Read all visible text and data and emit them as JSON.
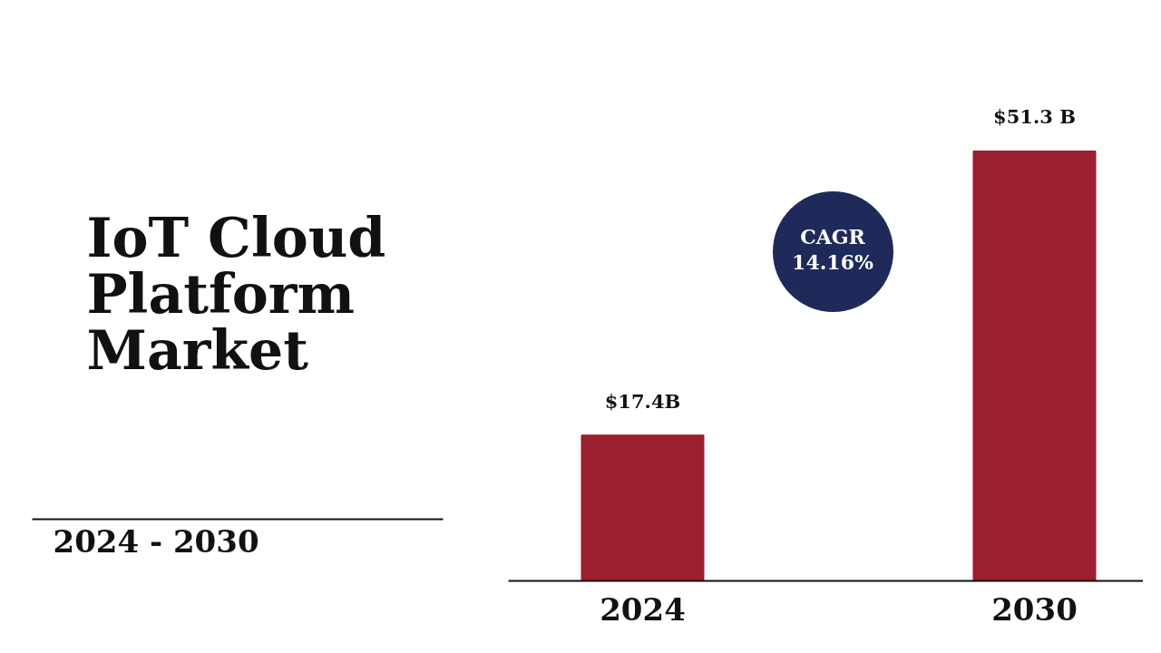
{
  "chart_data": {
    "type": "bar",
    "title": "IoT Cloud Platform Market",
    "categories": [
      "2024",
      "2030"
    ],
    "values": [
      17.4,
      51.3
    ],
    "color": "#9b1f2f",
    "value_labels": [
      "$17.4B",
      "$51.3 B"
    ],
    "annotations": [
      "2024 - 2030",
      "CAGR 14.16%"
    ]
  }
}
